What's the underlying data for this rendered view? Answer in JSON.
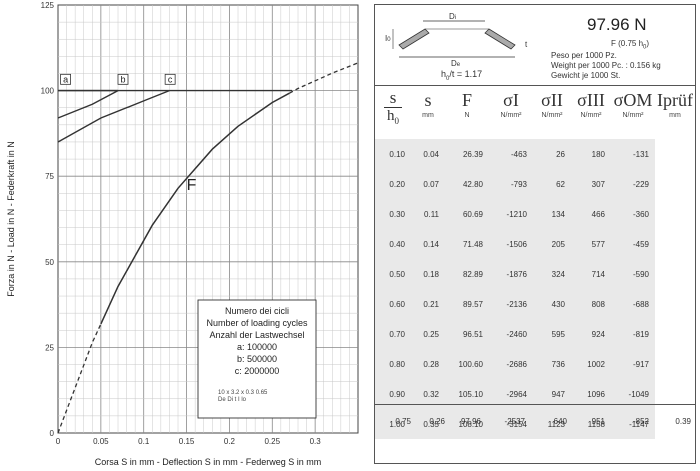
{
  "chart_data": {
    "type": "line",
    "xlabel": "Corsa S in mm - Deflection S in mm - Federweg S in mm",
    "ylabel": "Forza in N - Load in N - Federkraft in N",
    "xlim": [
      0,
      0.35
    ],
    "ylim": [
      0,
      125
    ],
    "x_ticks": [
      "0",
      "0.05",
      "0.1",
      "0.15",
      "0.2",
      "0.25",
      "0.3"
    ],
    "y_ticks": [
      "0",
      "25",
      "50",
      "75",
      "100",
      "125"
    ],
    "grid": true,
    "series": [
      {
        "name": "F",
        "x": [
          0,
          0.04,
          0.07,
          0.11,
          0.14,
          0.18,
          0.21,
          0.25,
          0.28,
          0.32,
          0.35
        ],
        "y": [
          0,
          26.39,
          42.8,
          60.69,
          71.48,
          82.89,
          89.57,
          96.51,
          100.6,
          105.1,
          108.1
        ],
        "dashed_after_x": 0.27,
        "dashed_before_x": 0.05
      },
      {
        "name": "a",
        "x": [
          0,
          0.07
        ],
        "y": [
          100,
          100
        ],
        "marker_x": 0.003
      },
      {
        "name": "b",
        "x": [
          0,
          0.04,
          0.07
        ],
        "y": [
          92,
          96,
          100
        ],
        "marker_x": 0.07
      },
      {
        "name": "c",
        "x": [
          0,
          0.05,
          0.1,
          0.13
        ],
        "y": [
          85,
          92,
          97,
          100
        ],
        "marker_x": 0.125
      }
    ],
    "annotations": [
      {
        "text": "F",
        "x": 0.15,
        "y": 71
      },
      {
        "text": "a",
        "x": 0.003,
        "y": 103
      },
      {
        "text": "b",
        "x": 0.07,
        "y": 103
      },
      {
        "text": "c",
        "x": 0.125,
        "y": 103
      }
    ],
    "legend": {
      "lines": [
        "Numero dei cicli",
        "Number of loading cycles",
        "Anzahl der Lastwechsel",
        "a:  100000",
        "b:  500000",
        "c: 2000000"
      ],
      "dims": "10  x  3.2  x  0.3        0.65",
      "dims_sub": "De        Di        t           I          lo",
      "placement": "bottom-right"
    }
  },
  "header": {
    "value": "97.96 N",
    "f_label": "F (0.75 h",
    "f_sub": "0",
    "f_close": ")",
    "peso": "Peso per 1000 Pz.",
    "weight": "Weight per 1000 Pc. :  0.156 kg",
    "gewicht": "Gewicht je 1000 St.",
    "ratio": "h",
    "ratio_sub": "0",
    "ratio_rest": "/t = 1.17",
    "diagram": {
      "di": "D",
      "di_sub": "i",
      "de": "D",
      "de_sub": "e",
      "t": "t",
      "lo": "I",
      "lo_sub": "0"
    }
  },
  "table": {
    "columns": [
      {
        "symbol": "s",
        "unit": ""
      },
      {
        "symbol": "s",
        "unit": "mm"
      },
      {
        "symbol": "F",
        "unit": "N"
      },
      {
        "symbol": "σI",
        "unit": "N/mm²"
      },
      {
        "symbol": "σII",
        "unit": "N/mm²"
      },
      {
        "symbol": "σIII",
        "unit": "N/mm²"
      },
      {
        "symbol": "σOM",
        "unit": "N/mm²"
      },
      {
        "symbol": "Iprüf",
        "unit": "mm"
      }
    ],
    "first_denominator": "h",
    "first_denominator_sub": "0",
    "rows": [
      [
        "0.10",
        "0.04",
        "26.39",
        "-463",
        "26",
        "180",
        "-131"
      ],
      [
        "0.20",
        "0.07",
        "42.80",
        "-793",
        "62",
        "307",
        "-229"
      ],
      [
        "0.30",
        "0.11",
        "60.69",
        "-1210",
        "134",
        "466",
        "-360"
      ],
      [
        "0.40",
        "0.14",
        "71.48",
        "-1506",
        "205",
        "577",
        "-459"
      ],
      [
        "0.50",
        "0.18",
        "82.89",
        "-1876",
        "324",
        "714",
        "-590"
      ],
      [
        "0.60",
        "0.21",
        "89.57",
        "-2136",
        "430",
        "808",
        "-688"
      ],
      [
        "0.70",
        "0.25",
        "96.51",
        "-2460",
        "595",
        "924",
        "-819"
      ],
      [
        "0.80",
        "0.28",
        "100.60",
        "-2686",
        "736",
        "1002",
        "-917"
      ],
      [
        "0.90",
        "0.32",
        "105.10",
        "-2964",
        "947",
        "1096",
        "-1049"
      ],
      [
        "1.00",
        "0.35",
        "108.10",
        "-3154",
        "1123",
        "1158",
        "-1147"
      ]
    ],
    "summary": [
      "0.75",
      "0.26",
      "97.96",
      "-2537",
      "640",
      "951",
      "-852",
      "0.39"
    ]
  }
}
